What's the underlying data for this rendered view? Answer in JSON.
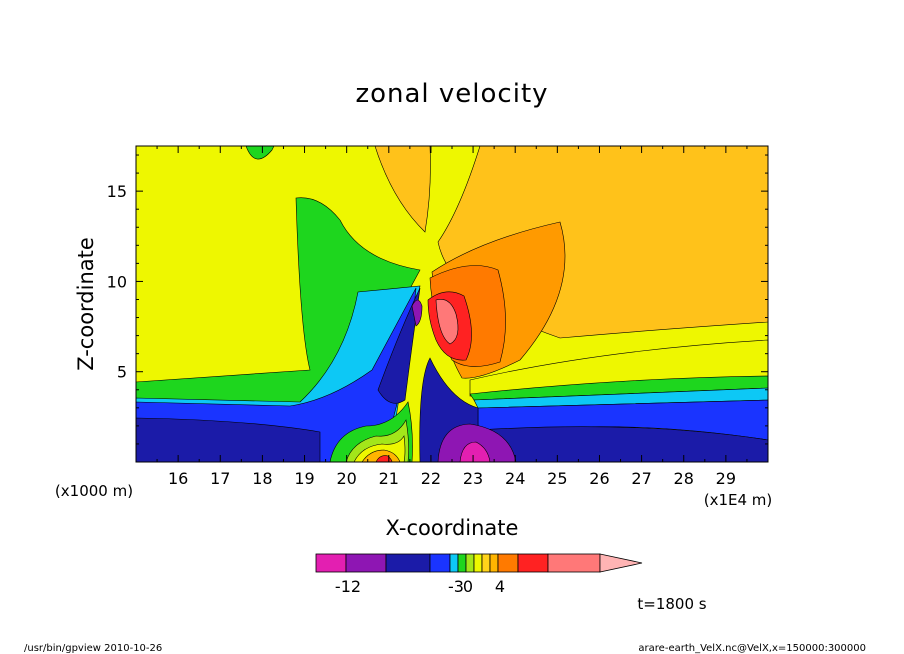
{
  "chart_data": {
    "type": "contour",
    "title": "zonal velocity",
    "xlabel": "X-coordinate",
    "ylabel": "Z-coordinate",
    "x_scale_label": "(x1E4 m)",
    "y_scale_label": "(x1000 m)",
    "x_ticks": [
      16,
      17,
      18,
      19,
      20,
      21,
      22,
      23,
      24,
      25,
      26,
      27,
      28,
      29
    ],
    "y_ticks": [
      5,
      10,
      15
    ],
    "xlim": [
      15,
      30
    ],
    "ylim": [
      0,
      17.5
    ],
    "time_label": "t=1800 s",
    "colorbar": {
      "colors": [
        "#e31fb1",
        "#8e16b3",
        "#1b1ba8",
        "#1a34ff",
        "#0dc8f5",
        "#1ed61e",
        "#a3e61a",
        "#eef700",
        "#ffd31a",
        "#ffb500",
        "#ff7a00",
        "#ff2222",
        "#ff7878",
        "#ffb4b4"
      ],
      "tick_labels": [
        "-12",
        "-3",
        "0",
        "4"
      ]
    }
  },
  "footer": {
    "left": "/usr/bin/gpview   2010-10-26",
    "right": "arare-earth_VelX.nc@VelX,x=150000:300000"
  }
}
